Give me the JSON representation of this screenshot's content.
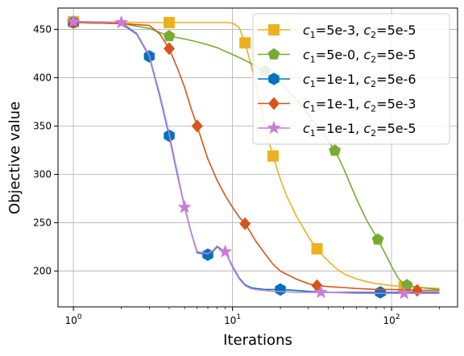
{
  "chart_data": {
    "type": "line",
    "title": "",
    "xlabel": "Iterations",
    "ylabel": "Objective value",
    "xscale": "log",
    "xlim": [
      0.8,
      260
    ],
    "ylim": [
      163,
      472
    ],
    "grid": true,
    "legend_position": "top-right",
    "x_tick_labels": [
      {
        "base": "10",
        "exp": "0",
        "value": 1
      },
      {
        "base": "10",
        "exp": "1",
        "value": 10
      },
      {
        "base": "10",
        "exp": "2",
        "value": 100
      }
    ],
    "y_ticks": [
      200,
      250,
      300,
      350,
      400,
      450
    ],
    "y_tick_labels": [
      "200",
      "250",
      "300",
      "350",
      "400",
      "450"
    ],
    "series": [
      {
        "name": "c1=5e-3, c2=5e-5",
        "legend": {
          "c1_sym": "c",
          "c1_sub": "1",
          "c1_val": "=5e-3, ",
          "c2_sym": "c",
          "c2_sub": "2",
          "c2_val": "=5e-5"
        },
        "color": "#EDB120",
        "marker": "square",
        "x": [
          1,
          2,
          3,
          4,
          5,
          6,
          7,
          8,
          9,
          10,
          11,
          12,
          13,
          14,
          15,
          16,
          18,
          20,
          22,
          25,
          28,
          31,
          34,
          38,
          42,
          47,
          52,
          60,
          70,
          80,
          100,
          120,
          150,
          200
        ],
        "y": [
          458,
          457.5,
          457,
          457,
          457,
          457,
          457,
          457,
          457,
          456.5,
          452,
          436,
          415,
          393,
          370,
          349,
          319,
          295,
          277,
          258,
          244,
          232,
          223,
          214,
          207,
          200,
          196,
          192,
          189,
          187,
          185,
          184,
          183,
          182
        ],
        "marker_x": [
          1,
          4,
          12,
          18,
          34,
          120
        ]
      },
      {
        "name": "c1=5e-0, c2=5e-5",
        "legend": {
          "c1_sym": "c",
          "c1_sub": "1",
          "c1_val": "=5e-0, ",
          "c2_sym": "c",
          "c2_sub": "2",
          "c2_val": "=5e-5"
        },
        "color": "#77AC30",
        "marker": "pentagon",
        "x": [
          1,
          2,
          3,
          4,
          5,
          6,
          7,
          8,
          10,
          12,
          14,
          16,
          20,
          25,
          30,
          35,
          40,
          45,
          50,
          55,
          60,
          70,
          80,
          90,
          100,
          110,
          120,
          150,
          200
        ],
        "y": [
          457,
          456,
          451,
          443,
          440,
          437,
          434,
          431,
          424,
          418,
          412,
          407,
          395,
          378,
          362,
          348,
          335,
          322,
          306,
          290,
          275,
          252,
          236,
          220,
          205,
          193,
          186,
          183,
          181
        ],
        "marker_x": [
          1,
          4,
          16,
          44,
          82,
          125
        ]
      },
      {
        "name": "c1=1e-1, c2=5e-6",
        "legend": {
          "c1_sym": "c",
          "c1_sub": "1",
          "c1_val": "=1e-1, ",
          "c2_sym": "c",
          "c2_sub": "2",
          "c2_val": "=5e-6"
        },
        "color": "#0072BD",
        "marker": "hexagon",
        "x": [
          1,
          2,
          2.5,
          3,
          3.5,
          4,
          4.5,
          5,
          5.5,
          6,
          6.5,
          7,
          7.5,
          8,
          9,
          10,
          11,
          12,
          13,
          14,
          16,
          18,
          20,
          25,
          30,
          40,
          60,
          80,
          120,
          200
        ],
        "y": [
          457,
          456,
          445,
          422,
          380,
          340,
          300,
          266,
          240,
          219,
          218,
          217,
          220,
          225,
          220,
          205,
          193,
          186,
          183,
          182,
          181,
          181,
          181,
          180,
          179,
          178,
          178,
          178,
          178,
          178
        ],
        "marker_x": [
          1,
          3,
          4,
          7,
          20,
          85
        ]
      },
      {
        "name": "c1=1e-1, c2=5e-3",
        "legend": {
          "c1_sym": "c",
          "c1_sub": "1",
          "c1_val": "=1e-1, ",
          "c2_sym": "c",
          "c2_sub": "2",
          "c2_val": "=5e-3"
        },
        "color": "#D95319",
        "marker": "diamond",
        "x": [
          1,
          2,
          3,
          3.5,
          4,
          4.5,
          5,
          5.5,
          6,
          6.5,
          7,
          8,
          9,
          10,
          11,
          12,
          13,
          14,
          16,
          18,
          20,
          25,
          30,
          34,
          40,
          50,
          60,
          80,
          100,
          150,
          200
        ],
        "y": [
          457,
          456,
          454,
          445,
          430,
          410,
          390,
          368,
          350,
          332,
          316,
          294,
          278,
          266,
          256,
          249,
          240,
          231,
          218,
          207,
          200,
          192,
          187,
          185,
          184,
          183,
          182,
          181,
          181,
          180,
          180
        ],
        "marker_x": [
          1,
          4,
          6,
          12,
          34,
          145
        ]
      },
      {
        "name": "c1=1e-1, c2=5e-5",
        "legend": {
          "c1_sym": "c",
          "c1_sub": "1",
          "c1_val": "=1e-1, ",
          "c2_sym": "c",
          "c2_sub": "2",
          "c2_val": "=5e-5"
        },
        "color": "#C97CD6",
        "marker": "star",
        "x": [
          1,
          2,
          2.5,
          3,
          3.5,
          4,
          4.5,
          5,
          5.5,
          6,
          6.5,
          7,
          7.5,
          8,
          9,
          10,
          11,
          12,
          13,
          14,
          16,
          18,
          20,
          25,
          30,
          40,
          60,
          80,
          120,
          200
        ],
        "y": [
          458,
          457,
          446,
          423,
          382,
          342,
          302,
          266,
          240,
          220,
          219,
          218,
          221,
          226,
          220,
          204,
          192,
          185,
          182,
          181,
          180,
          179,
          179,
          178,
          178,
          178,
          177,
          177,
          177,
          177
        ],
        "marker_x": [
          1,
          2,
          5,
          9,
          36,
          120
        ]
      }
    ]
  }
}
